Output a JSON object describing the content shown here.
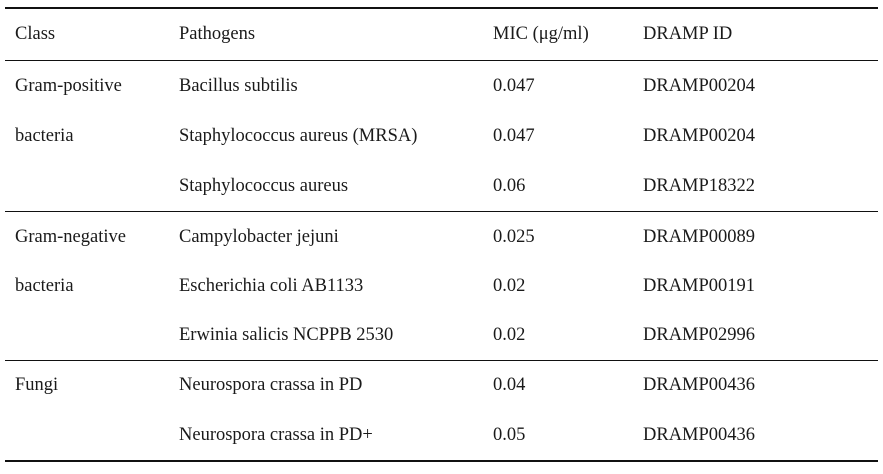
{
  "table": {
    "headers": {
      "class": "Class",
      "pathogens": "Pathogens",
      "mic": "MIC (μg/ml)",
      "dramp_id": "DRAMP ID"
    },
    "groups": [
      {
        "class_lines": [
          "Gram-positive",
          "bacteria"
        ],
        "rows": [
          {
            "pathogen": "Bacillus subtilis",
            "mic": "0.047",
            "dramp_id": "DRAMP00204"
          },
          {
            "pathogen": "Staphylococcus aureus (MRSA)",
            "mic": "0.047",
            "dramp_id": "DRAMP00204"
          },
          {
            "pathogen": "Staphylococcus aureus",
            "mic": "0.06",
            "dramp_id": "DRAMP18322"
          }
        ]
      },
      {
        "class_lines": [
          "Gram-negative",
          "bacteria"
        ],
        "rows": [
          {
            "pathogen": "Campylobacter jejuni",
            "mic": "0.025",
            "dramp_id": "DRAMP00089"
          },
          {
            "pathogen": "Escherichia coli AB1133",
            "mic": "0.02",
            "dramp_id": "DRAMP00191"
          },
          {
            "pathogen": "Erwinia salicis NCPPB 2530",
            "mic": "0.02",
            "dramp_id": "DRAMP02996"
          }
        ]
      },
      {
        "class_lines": [
          "Fungi"
        ],
        "rows": [
          {
            "pathogen": "Neurospora crassa in PD",
            "mic": "0.04",
            "dramp_id": "DRAMP00436"
          },
          {
            "pathogen": "Neurospora crassa in PD+",
            "mic": "0.05",
            "dramp_id": "DRAMP00436"
          }
        ]
      }
    ]
  }
}
